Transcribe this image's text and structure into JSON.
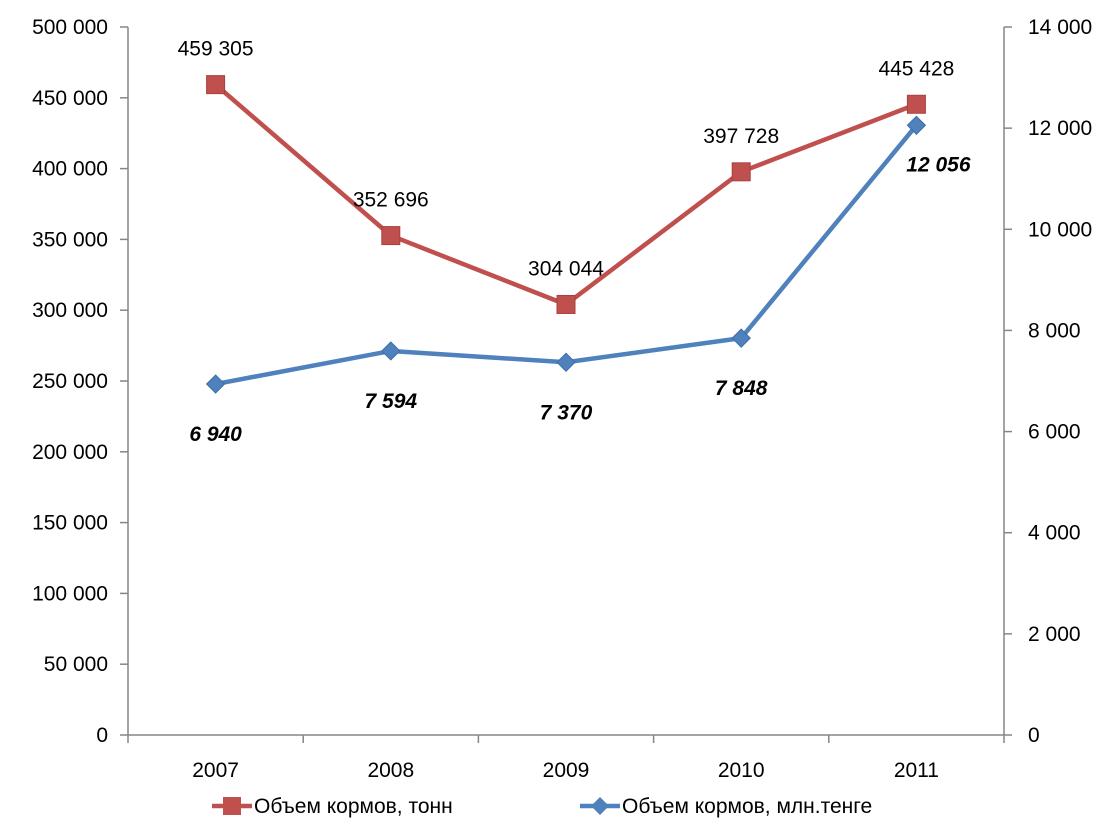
{
  "chart_data": {
    "type": "line",
    "categories": [
      "2007",
      "2008",
      "2009",
      "2010",
      "2011"
    ],
    "y_left": {
      "ylim": [
        0,
        500000
      ],
      "ticks": [
        0,
        50000,
        100000,
        150000,
        200000,
        250000,
        300000,
        350000,
        400000,
        450000,
        500000
      ],
      "tick_labels": [
        "0",
        "50 000",
        "100 000",
        "150 000",
        "200 000",
        "250 000",
        "300 000",
        "350 000",
        "400 000",
        "450 000",
        "500 000"
      ]
    },
    "y_right": {
      "ylim": [
        0,
        14000
      ],
      "ticks": [
        0,
        2000,
        4000,
        6000,
        8000,
        10000,
        12000,
        14000
      ],
      "tick_labels": [
        "0",
        "2 000",
        "4 000",
        "6 000",
        "8 000",
        "10 000",
        "12 000",
        "14 000"
      ]
    },
    "series": [
      {
        "name": "Объем кормов, тонн",
        "axis": "left",
        "marker": "square",
        "color": "#C0504D",
        "values": [
          459305,
          352696,
          304044,
          397728,
          445428
        ],
        "data_labels": [
          "459 305",
          "352 696",
          "304 044",
          "397 728",
          "445 428"
        ]
      },
      {
        "name": "Объем кормов, млн.тенге",
        "axis": "right",
        "marker": "diamond",
        "color": "#4F81BD",
        "values": [
          6940,
          7594,
          7370,
          7848,
          12056
        ],
        "data_labels": [
          "6 940",
          "7 594",
          "7 370",
          "7 848",
          "12 056"
        ]
      }
    ],
    "grid": false,
    "legend_position": "bottom"
  }
}
